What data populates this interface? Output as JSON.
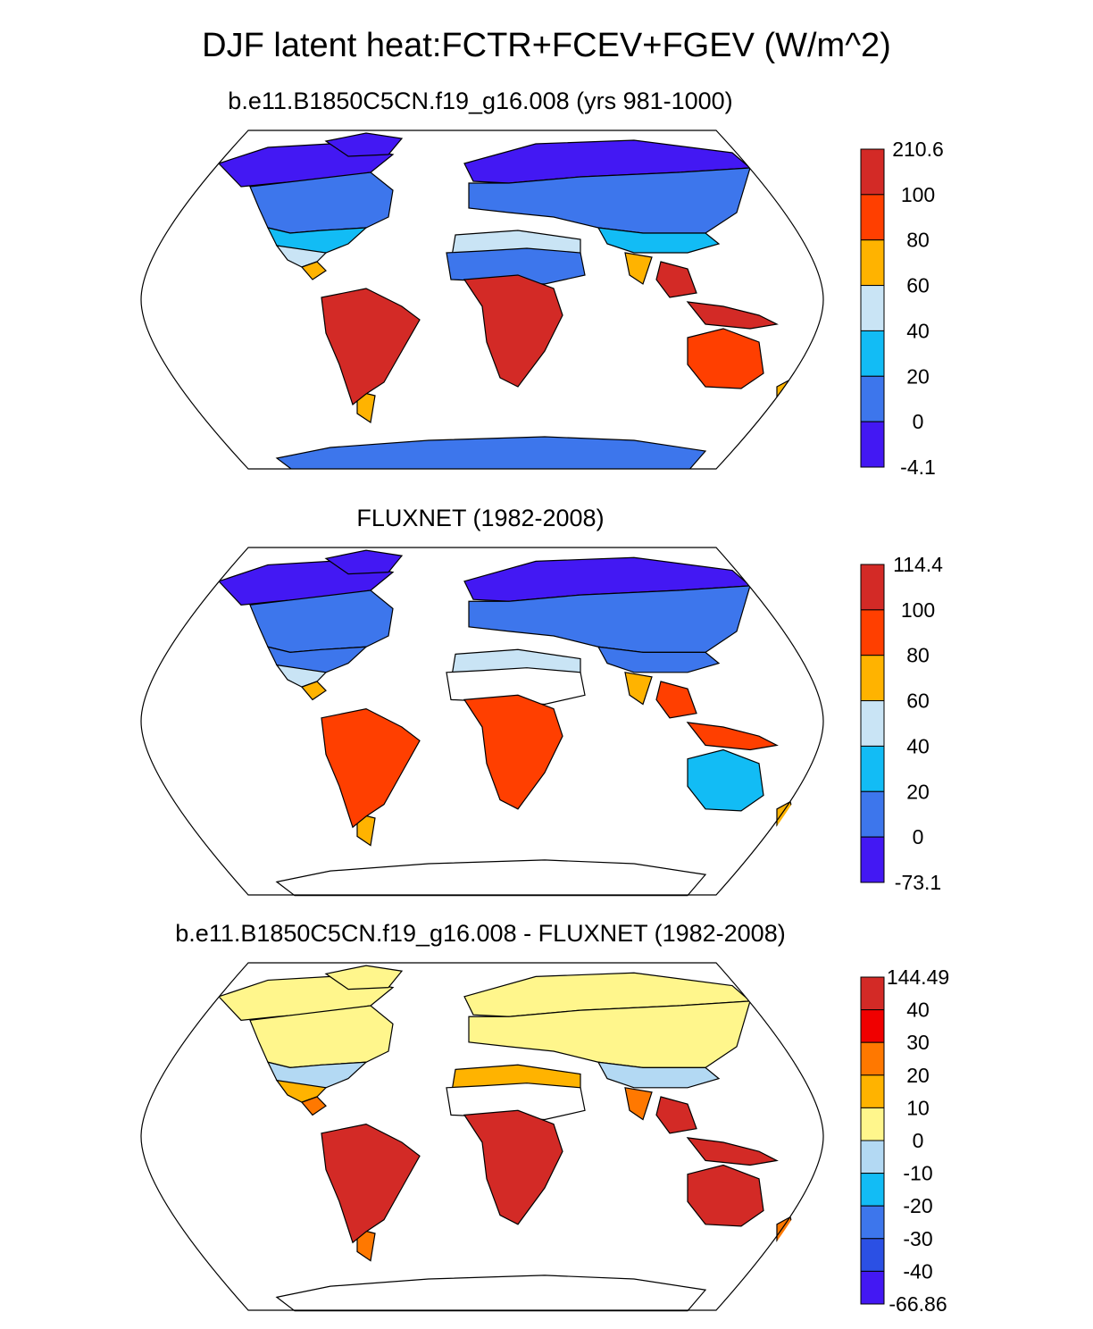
{
  "title": "DJF latent heat:FCTR+FCEV+FGEV (W/m^2)",
  "panels": [
    {
      "title": "b.e11.B1850C5CN.f19_g16.008 (yrs 981-1000)",
      "colorbar": {
        "labels": [
          "210.6",
          "100",
          "80",
          "60",
          "40",
          "20",
          "0",
          "-4.1"
        ],
        "colors": [
          "#d32a26",
          "#ff3f00",
          "#ffb300",
          "#c9e4f5",
          "#12bcf5",
          "#3d76ec",
          "#4318f3"
        ]
      },
      "regions": {
        "arctic": "#4318f3",
        "boreal": "#3d76ec",
        "midlat": "#12bcf5",
        "subtropic": "#c9e4f5",
        "trop_edge": "#ffb300",
        "tropics": "#d32a26",
        "desert": "#3d76ec",
        "australia": "#ff3f00",
        "antarctica": "#3d76ec"
      }
    },
    {
      "title": "FLUXNET (1982-2008)",
      "colorbar": {
        "labels": [
          "114.4",
          "100",
          "80",
          "60",
          "40",
          "20",
          "0",
          "-73.1"
        ],
        "colors": [
          "#d32a26",
          "#ff3f00",
          "#ffb300",
          "#c9e4f5",
          "#12bcf5",
          "#3d76ec",
          "#4318f3"
        ]
      },
      "regions": {
        "arctic": "#4318f3",
        "boreal": "#3d76ec",
        "midlat": "#3d76ec",
        "subtropic": "#c9e4f5",
        "trop_edge": "#ffb300",
        "tropics": "#ff3f00",
        "desert": "#ffffff",
        "australia": "#12bcf5",
        "antarctica": "#ffffff"
      }
    },
    {
      "title": "b.e11.B1850C5CN.f19_g16.008 - FLUXNET (1982-2008)",
      "colorbar": {
        "labels": [
          "144.49",
          "40",
          "30",
          "20",
          "10",
          "0",
          "-10",
          "-20",
          "-30",
          "-40",
          "-66.86"
        ],
        "colors": [
          "#d32a26",
          "#f00000",
          "#ff7800",
          "#ffb300",
          "#fff68c",
          "#b3d9f3",
          "#12bcf5",
          "#3d76ec",
          "#2b50e4",
          "#4318f3"
        ]
      },
      "regions": {
        "arctic": "#fff68c",
        "boreal": "#fff68c",
        "midlat": "#b3d9f3",
        "subtropic": "#ffb300",
        "trop_edge": "#ff7800",
        "tropics": "#d32a26",
        "desert": "#ffffff",
        "australia": "#d32a26",
        "antarctica": "#ffffff"
      }
    }
  ]
}
